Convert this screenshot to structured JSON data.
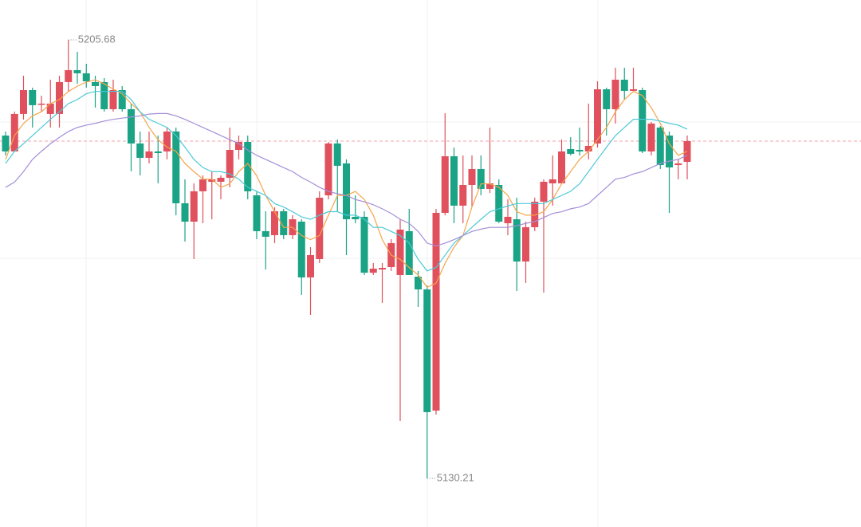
{
  "chart_data": {
    "type": "candlestick",
    "up_color": "#e0505d",
    "down_color": "#1aa385",
    "last_line_color": "#f4a5ab",
    "annotation_color": "#888888",
    "ylim": [
      5122,
      5212
    ],
    "open": [
      5189.21,
      5186.47,
      5192.92,
      5197.03,
      5194.56,
      5192.92,
      5192.92,
      5198.41,
      5200.46,
      5199.92,
      5198.41,
      5198.41,
      5193.74,
      5197.03,
      5193.74,
      5187.84,
      5185.37,
      5186.47,
      5186.47,
      5189.9,
      5177.55,
      5174.39,
      5179.61,
      5181.25,
      5181.25,
      5181.94,
      5186.74,
      5188.11,
      5178.92,
      5172.75,
      5172.06,
      5176.18,
      5172.06,
      5174.39,
      5164.79,
      5167.94,
      5178.92,
      5187.84,
      5184.41,
      5175.22,
      5175.22,
      5165.61,
      5166.16,
      5166.57,
      5165.2,
      5172.75,
      5164.92,
      5162.73,
      5141.87,
      5175.9,
      5185.64,
      5177.14,
      5180.7,
      5183.45,
      5180.02,
      5180.7,
      5174.12,
      5174.8,
      5167.53,
      5173.43,
      5177.82,
      5180.98,
      5180.98,
      5186.88,
      5186.74,
      5186.47,
      5187.84,
      5197.17,
      5193.74,
      5198.82,
      5196.9,
      5197.03,
      5186.47,
      5190.58,
      5189.21,
      5184.13,
      5184.68
    ],
    "high": [
      5189.9,
      5193.33,
      5199.5,
      5197.45,
      5196.07,
      5198.82,
      5199.5,
      5205.68,
      5203.62,
      5201.56,
      5199.5,
      5199.09,
      5198.82,
      5197.72,
      5194.7,
      5189.9,
      5189.9,
      5189.21,
      5190.58,
      5190.58,
      5181.67,
      5180.98,
      5182.35,
      5183.04,
      5182.35,
      5190.58,
      5189.21,
      5189.21,
      5179.61,
      5176.18,
      5176.86,
      5176.59,
      5175.49,
      5174.8,
      5170.0,
      5179.61,
      5188.11,
      5188.53,
      5185.1,
      5178.92,
      5176.18,
      5167.26,
      5167.26,
      5171.37,
      5174.8,
      5176.59,
      5165.89,
      5163.42,
      5176.59,
      5193.05,
      5187.15,
      5185.78,
      5185.78,
      5185.78,
      5190.58,
      5181.67,
      5178.23,
      5178.51,
      5174.39,
      5178.51,
      5181.67,
      5185.78,
      5188.53,
      5188.94,
      5190.58,
      5194.7,
      5198.54,
      5197.45,
      5200.88,
      5200.88,
      5200.88,
      5197.45,
      5191.55,
      5190.86,
      5189.9,
      5185.1,
      5189.21
    ],
    "low": [
      5185.78,
      5186.47,
      5191.96,
      5190.58,
      5193.33,
      5190.58,
      5190.58,
      5196.76,
      5198.13,
      5197.45,
      5194.02,
      5193.33,
      5193.33,
      5193.33,
      5183.04,
      5182.35,
      5184.41,
      5180.98,
      5185.1,
      5175.49,
      5170.96,
      5167.94,
      5174.12,
      5174.8,
      5178.23,
      5180.29,
      5185.1,
      5178.23,
      5171.37,
      5166.16,
      5170.69,
      5171.37,
      5171.37,
      5161.77,
      5158.34,
      5167.26,
      5178.23,
      5176.18,
      5168.63,
      5174.12,
      5165.2,
      5165.2,
      5160.4,
      5165.89,
      5140.09,
      5165.2,
      5159.71,
      5130.21,
      5141.19,
      5175.49,
      5174.12,
      5174.12,
      5176.86,
      5178.92,
      5179.33,
      5174.12,
      5172.06,
      5162.45,
      5163.83,
      5172.75,
      5162.18,
      5177.14,
      5180.98,
      5185.78,
      5185.78,
      5185.1,
      5187.15,
      5189.21,
      5191.27,
      5195.39,
      5196.76,
      5186.19,
      5185.78,
      5183.45,
      5175.9,
      5181.67,
      5181.67
    ],
    "close": [
      5186.47,
      5192.92,
      5197.03,
      5194.43,
      5194.7,
      5194.7,
      5198.41,
      5200.46,
      5199.92,
      5198.54,
      5197.72,
      5193.74,
      5197.03,
      5193.74,
      5187.84,
      5185.37,
      5186.47,
      5186.19,
      5189.9,
      5177.55,
      5174.39,
      5179.61,
      5181.67,
      5181.67,
      5181.94,
      5186.74,
      5188.11,
      5179.61,
      5172.75,
      5171.79,
      5176.18,
      5172.06,
      5174.8,
      5164.79,
      5168.63,
      5178.51,
      5187.84,
      5184.0,
      5174.8,
      5174.8,
      5165.61,
      5166.3,
      5166.43,
      5170.69,
      5173.02,
      5165.2,
      5162.73,
      5141.6,
      5175.9,
      5185.64,
      5177.14,
      5180.7,
      5183.45,
      5180.02,
      5180.98,
      5174.39,
      5175.22,
      5167.53,
      5173.43,
      5177.82,
      5181.25,
      5181.67,
      5186.47,
      5186.06,
      5186.47,
      5187.43,
      5197.17,
      5193.74,
      5198.82,
      5196.9,
      5197.17,
      5186.47,
      5191.27,
      5184.13,
      5183.72,
      5184.41,
      5188.25
    ],
    "moving_averages": [
      {
        "color": "#f5a54a",
        "values": [
          5185.1,
          5189.2,
          5191.3,
          5192.6,
          5193.3,
          5194.7,
          5195.4,
          5196.8,
          5197.7,
          5198.4,
          5198.8,
          5198.1,
          5197.2,
          5196.4,
          5194.7,
          5193.3,
          5190.6,
          5188.5,
          5187.2,
          5186.5,
          5184.4,
          5183.0,
          5181.7,
          5181.7,
          5180.3,
          5180.9,
          5183.0,
          5184.4,
          5182.3,
          5178.9,
          5176.1,
          5173.4,
          5173.4,
          5172.0,
          5171.3,
          5172.0,
          5175.5,
          5178.9,
          5178.9,
          5179.6,
          5178.2,
          5175.5,
          5171.3,
          5168.6,
          5167.9,
          5166.5,
          5165.2,
          5163.1,
          5163.8,
          5167.2,
          5170.0,
          5172.0,
          5176.9,
          5180.9,
          5180.9,
          5180.3,
          5178.9,
          5176.1,
          5175.5,
          5175.5,
          5176.1,
          5178.2,
          5180.9,
          5183.0,
          5185.1,
          5186.5,
          5188.5,
          5190.6,
          5193.3,
          5195.4,
          5196.8,
          5196.1,
          5194.0,
          5191.3,
          5187.8,
          5185.8,
          5186.5
        ]
      },
      {
        "color": "#4cc9d8",
        "values": [
          5184.4,
          5186.5,
          5187.8,
          5189.2,
          5190.6,
          5192.0,
          5193.3,
          5194.7,
          5195.4,
          5196.4,
          5196.8,
          5196.8,
          5196.8,
          5196.8,
          5195.4,
          5193.3,
          5192.0,
          5191.3,
          5190.6,
          5189.2,
          5187.2,
          5185.1,
          5183.7,
          5183.0,
          5183.0,
          5182.6,
          5181.7,
          5180.3,
          5179.6,
          5178.9,
          5177.5,
          5176.9,
          5176.1,
          5175.2,
          5174.8,
          5175.5,
          5176.1,
          5176.1,
          5175.5,
          5175.5,
          5174.8,
          5173.4,
          5173.4,
          5172.7,
          5172.0,
          5170.7,
          5167.9,
          5165.9,
          5166.5,
          5168.6,
          5170.7,
          5172.0,
          5173.4,
          5174.8,
          5176.1,
          5176.6,
          5177.1,
          5177.5,
          5177.5,
          5177.5,
          5177.5,
          5178.2,
          5178.9,
          5179.6,
          5180.9,
          5183.0,
          5185.1,
          5187.2,
          5189.2,
          5190.6,
          5192.0,
          5192.0,
          5192.0,
          5191.7,
          5191.3,
          5191.0,
          5190.3
        ]
      },
      {
        "color": "#a58fd8",
        "values": [
          5180.3,
          5181.2,
          5183.0,
          5185.1,
          5186.5,
          5187.8,
          5188.9,
          5189.9,
          5190.6,
          5191.0,
          5191.3,
          5191.7,
          5192.0,
          5192.2,
          5192.4,
          5192.6,
          5192.9,
          5193.0,
          5193.0,
          5192.6,
          5192.0,
          5191.3,
          5190.6,
          5189.9,
          5189.2,
          5188.5,
          5187.8,
          5186.7,
          5185.8,
          5185.1,
          5184.4,
          5183.7,
          5183.0,
          5182.0,
          5181.2,
          5180.3,
          5179.6,
          5179.2,
          5178.9,
          5178.2,
          5177.8,
          5177.3,
          5176.6,
          5175.8,
          5174.8,
          5174.1,
          5172.7,
          5170.7,
          5170.2,
          5170.7,
          5171.3,
          5172.0,
          5172.7,
          5173.1,
          5173.4,
          5173.4,
          5173.4,
          5173.7,
          5174.1,
          5174.4,
          5175.1,
          5175.8,
          5176.1,
          5176.6,
          5176.9,
          5177.5,
          5178.9,
          5180.3,
          5181.7,
          5182.0,
          5182.6,
          5183.0,
          5183.7,
          5184.4,
          5184.8,
          5185.1,
          5185.8
        ]
      }
    ]
  }
}
